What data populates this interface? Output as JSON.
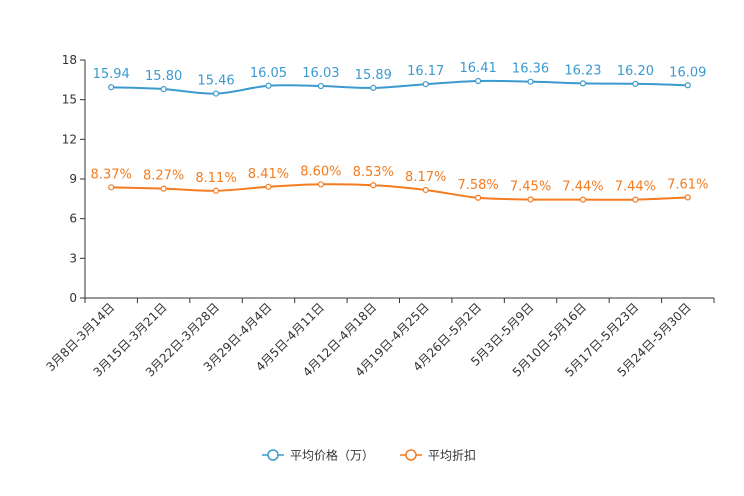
{
  "chart_data": {
    "type": "line",
    "title": "",
    "xlabel": "",
    "ylabel": "",
    "ylim": [
      0,
      18
    ],
    "yticks": [
      0,
      3,
      6,
      9,
      12,
      15,
      18
    ],
    "grid": false,
    "legend_position": "bottom",
    "categories": [
      "3月8日-3月14日",
      "3月15日-3月21日",
      "3月22日-3月28日",
      "3月29日-4月4日",
      "4月5日-4月11日",
      "4月12日-4月18日",
      "4月19日-4月25日",
      "4月26日-5月2日",
      "5月3日-5月9日",
      "5月10日-5月16日",
      "5月17日-5月23日",
      "5月24日-5月30日"
    ],
    "series": [
      {
        "name": "平均价格（万）",
        "color": "#3b9ad0",
        "values": [
          15.94,
          15.8,
          15.46,
          16.05,
          16.03,
          15.89,
          16.17,
          16.41,
          16.36,
          16.23,
          16.2,
          16.09
        ],
        "labels": [
          "15.94",
          "15.80",
          "15.46",
          "16.05",
          "16.03",
          "15.89",
          "16.17",
          "16.41",
          "16.36",
          "16.23",
          "16.20",
          "16.09"
        ]
      },
      {
        "name": "平均折扣",
        "color": "#f47c20",
        "values": [
          8.37,
          8.27,
          8.11,
          8.41,
          8.6,
          8.53,
          8.17,
          7.58,
          7.45,
          7.44,
          7.44,
          7.61
        ],
        "labels": [
          "8.37%",
          "8.27%",
          "8.11%",
          "8.41%",
          "8.60%",
          "8.53%",
          "8.17%",
          "7.58%",
          "7.45%",
          "7.44%",
          "7.44%",
          "7.61%"
        ]
      }
    ]
  }
}
